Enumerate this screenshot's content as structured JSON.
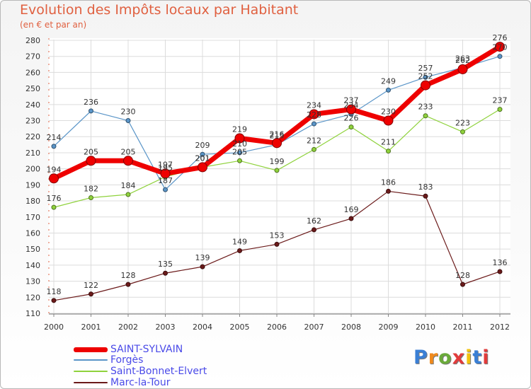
{
  "title": "Evolution des Impôts locaux par Habitant",
  "subtitle": "(en € et par an)",
  "logo": {
    "text": "Proxiti",
    "letter_colors": [
      "#3a7fd5",
      "#f08a1c",
      "#6aaa3a",
      "#e23b3b",
      "#f2c30f",
      "#3a7fd5",
      "#e23b3b"
    ]
  },
  "chart_data": {
    "type": "line",
    "x": [
      "2000",
      "2001",
      "2002",
      "2003",
      "2004",
      "2005",
      "2006",
      "2007",
      "2008",
      "2009",
      "2010",
      "2011",
      "2012"
    ],
    "ylim": [
      110,
      280
    ],
    "yticks": [
      110,
      120,
      130,
      140,
      150,
      160,
      170,
      180,
      190,
      200,
      210,
      220,
      230,
      240,
      250,
      260,
      270,
      280
    ],
    "grid": true,
    "legend_position": "bottom-left",
    "series": [
      {
        "name": "Marc-la-Tour",
        "color": "#6b1a1a",
        "values": [
          118,
          122,
          128,
          135,
          139,
          149,
          153,
          162,
          169,
          186,
          183,
          128,
          136
        ]
      },
      {
        "name": "Saint-Bonnet-Elvert",
        "color": "#8fd23c",
        "values": [
          176,
          182,
          184,
          195,
          201,
          205,
          199,
          212,
          226,
          211,
          233,
          223,
          237
        ]
      },
      {
        "name": "Forgès",
        "color": "#5a95c8",
        "values": [
          214,
          236,
          230,
          187,
          209,
          210,
          215,
          228,
          234,
          249,
          257,
          263,
          270
        ]
      },
      {
        "name": "SAINT-SYLVAIN",
        "color": "#ee0000",
        "values": [
          194,
          205,
          205,
          197,
          201,
          219,
          216,
          234,
          237,
          230,
          252,
          262,
          276
        ]
      }
    ],
    "legend_order": [
      "SAINT-SYLVAIN",
      "Forgès",
      "Saint-Bonnet-Elvert",
      "Marc-la-Tour"
    ]
  }
}
